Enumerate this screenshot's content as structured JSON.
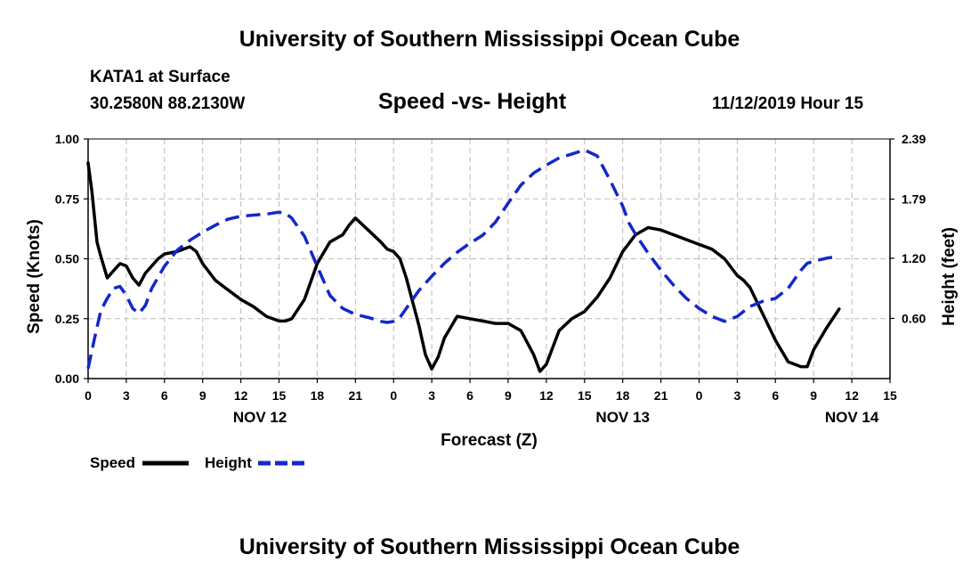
{
  "header": {
    "title": "University of Southern Mississippi Ocean Cube",
    "station": "KATA1 at Surface",
    "coords": "30.2580N 88.2130W",
    "subtitle": "Speed -vs- Height",
    "datetime": "11/12/2019 Hour 15"
  },
  "footer": {
    "title": "University of Southern Mississippi Ocean Cube"
  },
  "chart_data": {
    "type": "line",
    "title": "Speed -vs- Height",
    "xlabel": "Forecast (Z)",
    "ylabel_left": "Speed (Knots)",
    "ylabel_right": "Height (feet)",
    "x_unit": "forecast hour",
    "xlim": [
      0,
      63
    ],
    "ylim_left": [
      0,
      1
    ],
    "ylim_right": [
      0,
      2.39
    ],
    "x_ticks": [
      0,
      3,
      6,
      9,
      12,
      15,
      18,
      21,
      24,
      27,
      30,
      33,
      36,
      39,
      42,
      45,
      48,
      51,
      54,
      57,
      60,
      63
    ],
    "x_tick_labels": [
      "0",
      "3",
      "6",
      "9",
      "12",
      "15",
      "18",
      "21",
      "0",
      "3",
      "6",
      "9",
      "12",
      "15",
      "18",
      "21",
      "0",
      "3",
      "6",
      "9",
      "12",
      "15"
    ],
    "y_left_ticks": [
      0,
      0.25,
      0.5,
      0.75,
      1.0
    ],
    "y_left_tick_labels": [
      "0.00",
      "0.25",
      "0.50",
      "0.75",
      "1.00"
    ],
    "y_right_ticks": [
      0.6,
      1.2,
      1.79,
      2.39
    ],
    "y_right_tick_labels": [
      "0.60",
      "1.20",
      "1.79",
      "2.39"
    ],
    "x_tick_labels_display": [
      "0",
      "3",
      "6",
      "9",
      "12",
      "15",
      "18",
      "21",
      "0",
      "3",
      "6",
      "9",
      "12",
      "15",
      "18",
      "21",
      "0",
      "3",
      "6"
    ],
    "date_labels": [
      {
        "label": "NOV 12",
        "x": 13.5
      },
      {
        "label": "NOV 13",
        "x": 42
      },
      {
        "label": "NOV 14",
        "x": 60
      }
    ],
    "grid": true,
    "legend": {
      "placement": "bottom-left",
      "speed_label": "Speed",
      "height_label": "Height"
    },
    "series": [
      {
        "name": "Speed",
        "axis": "left",
        "color": "#000000",
        "style": "solid",
        "x": [
          0,
          0.3,
          0.7,
          1,
          1.5,
          2,
          2.5,
          3,
          3.5,
          4,
          4.5,
          5,
          5.5,
          6,
          7,
          8,
          8.5,
          9,
          10,
          11,
          12,
          13,
          14,
          15,
          15.5,
          16,
          17,
          18,
          19,
          20,
          20.5,
          21,
          22,
          23,
          23.5,
          24,
          24.5,
          25,
          26,
          26.5,
          27,
          27.5,
          28,
          29,
          30,
          31,
          32,
          33,
          34,
          35,
          35.5,
          36,
          37,
          38,
          39,
          40,
          41,
          42,
          43,
          44,
          45,
          46,
          47,
          48,
          49,
          50,
          51,
          51.5,
          52,
          53,
          54,
          55,
          55.5,
          56,
          56.5,
          57,
          58,
          59
        ],
        "values": [
          0.9,
          0.78,
          0.57,
          0.51,
          0.42,
          0.45,
          0.48,
          0.47,
          0.42,
          0.39,
          0.44,
          0.47,
          0.5,
          0.52,
          0.53,
          0.55,
          0.53,
          0.48,
          0.41,
          0.37,
          0.33,
          0.3,
          0.26,
          0.24,
          0.24,
          0.25,
          0.33,
          0.48,
          0.57,
          0.6,
          0.64,
          0.67,
          0.62,
          0.57,
          0.54,
          0.53,
          0.5,
          0.42,
          0.22,
          0.1,
          0.04,
          0.09,
          0.17,
          0.26,
          0.25,
          0.24,
          0.23,
          0.23,
          0.2,
          0.1,
          0.03,
          0.06,
          0.2,
          0.25,
          0.28,
          0.34,
          0.42,
          0.53,
          0.6,
          0.63,
          0.62,
          0.6,
          0.58,
          0.56,
          0.54,
          0.5,
          0.43,
          0.41,
          0.38,
          0.27,
          0.16,
          0.07,
          0.06,
          0.05,
          0.05,
          0.12,
          0.21,
          0.29
        ]
      },
      {
        "name": "Height",
        "axis": "right",
        "color": "#1428c8",
        "style": "dashed",
        "x": [
          0,
          0.5,
          1,
          1.5,
          2,
          2.5,
          3,
          3.5,
          4,
          4.5,
          5,
          6,
          7,
          8,
          9,
          10,
          11,
          12,
          13,
          14,
          15,
          15.5,
          16,
          17,
          18,
          19,
          20,
          21,
          22,
          23,
          23.5,
          24,
          24.5,
          25,
          26,
          27,
          28,
          29,
          30,
          31,
          32,
          33,
          34,
          35,
          36,
          37,
          38,
          39,
          40,
          40.5,
          41,
          41.5,
          42,
          42.5,
          43,
          44,
          45,
          46,
          47,
          48,
          49,
          50,
          51,
          52,
          53,
          54,
          55,
          56,
          56.5,
          57,
          58,
          59
        ],
        "values": [
          0.1,
          0.4,
          0.68,
          0.8,
          0.9,
          0.92,
          0.83,
          0.7,
          0.65,
          0.73,
          0.9,
          1.12,
          1.28,
          1.38,
          1.46,
          1.53,
          1.59,
          1.62,
          1.63,
          1.64,
          1.66,
          1.65,
          1.6,
          1.42,
          1.12,
          0.83,
          0.7,
          0.64,
          0.61,
          0.57,
          0.56,
          0.57,
          0.61,
          0.7,
          0.88,
          1.02,
          1.15,
          1.26,
          1.35,
          1.43,
          1.56,
          1.75,
          1.93,
          2.05,
          2.13,
          2.2,
          2.24,
          2.28,
          2.22,
          2.1,
          1.98,
          1.85,
          1.72,
          1.55,
          1.44,
          1.25,
          1.08,
          0.93,
          0.8,
          0.7,
          0.62,
          0.57,
          0.62,
          0.72,
          0.77,
          0.8,
          0.9,
          1.08,
          1.15,
          1.17,
          1.2,
          1.22
        ]
      }
    ]
  }
}
